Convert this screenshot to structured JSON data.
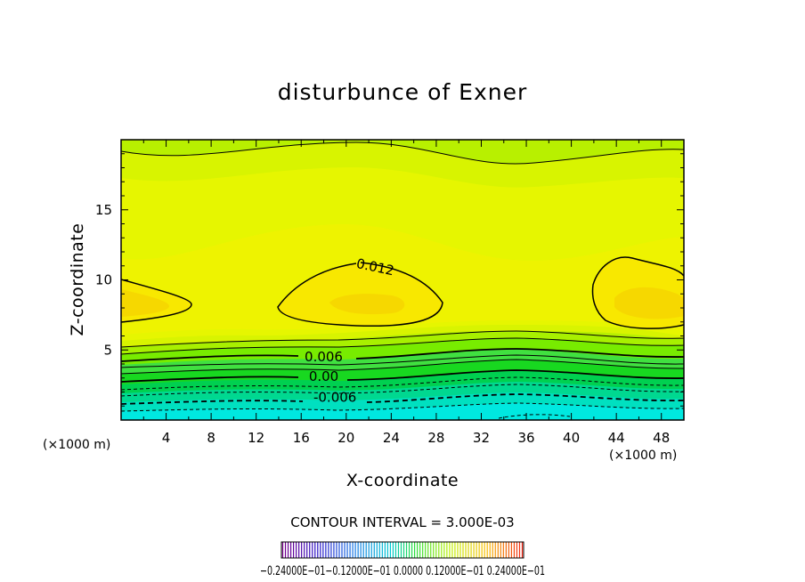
{
  "chart_data": {
    "type": "contour",
    "title": "disturbunce of Exner",
    "xlabel": "X-coordinate",
    "ylabel": "Z-coordinate",
    "x_unit_left": "(×1000 m)",
    "x_unit_right": "(×1000 m)",
    "xlim": [
      0,
      50
    ],
    "ylim": [
      0,
      20
    ],
    "x_ticks": [
      4,
      8,
      12,
      16,
      20,
      24,
      28,
      32,
      36,
      40,
      44,
      48
    ],
    "y_ticks": [
      5,
      10,
      15
    ],
    "contour_interval_text": "CONTOUR INTERVAL = 3.000E-03",
    "contour_labels": [
      {
        "text": "0.012",
        "x": 22.5,
        "z": 10.6
      },
      {
        "text": "0.006",
        "x": 18,
        "z": 4.2
      },
      {
        "text": "0.00",
        "x": 18,
        "z": 2.8
      },
      {
        "text": "-0.006",
        "x": 19,
        "z": 1.3
      }
    ],
    "colorbar_label_text": "−0.24000E−01−0.12000E−01 0.0000 0.12000E−01 0.24000E−01",
    "colorbar_range": [
      -0.024,
      0.024
    ]
  }
}
